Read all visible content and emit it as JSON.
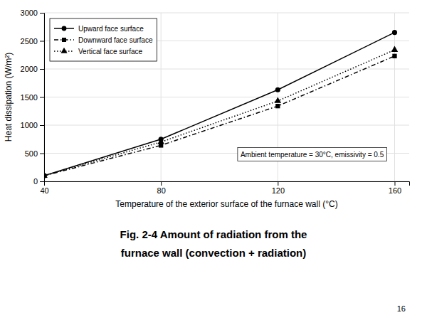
{
  "chart_data": {
    "type": "line",
    "x": [
      40,
      80,
      120,
      160
    ],
    "series": [
      {
        "name": "Upward face surface",
        "color": "#000000",
        "marker": "circle",
        "line_style": "solid",
        "values": [
          100,
          750,
          1630,
          2650
        ]
      },
      {
        "name": "Downward face surface",
        "color": "#000000",
        "marker": "square",
        "line_style": "dashdot",
        "values": [
          100,
          640,
          1340,
          2230
        ]
      },
      {
        "name": "Vertical face surface",
        "color": "#000000",
        "marker": "triangle",
        "line_style": "dotted",
        "values": [
          100,
          700,
          1430,
          2340
        ]
      }
    ],
    "xlim": [
      40,
      165
    ],
    "ylim": [
      0,
      3000
    ],
    "xticks": [
      40,
      80,
      120,
      160
    ],
    "yticks": [
      0,
      500,
      1000,
      1500,
      2000,
      2500,
      3000
    ],
    "x_label": "Temperature of the exterior surface of the furnace wall (°C)",
    "y_label": "Heat dissipation (W/m²)",
    "grid": true,
    "legend": "upper-left",
    "annotation": "Ambient temperature = 30°C, emissivity = 0.5",
    "caption": [
      "Fig. 2-4 Amount of radiation from the",
      "furnace wall (convection + radiation)"
    ],
    "page_number": "16"
  }
}
